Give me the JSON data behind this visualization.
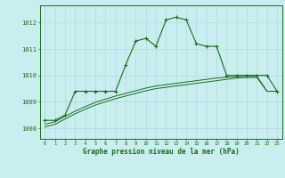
{
  "title": "Graphe pression niveau de la mer (hPa)",
  "background_color": "#c8eef0",
  "grid_color": "#b0d8dc",
  "line_color": "#1a6b1a",
  "x_ticks": [
    0,
    1,
    2,
    3,
    4,
    5,
    6,
    7,
    8,
    9,
    10,
    11,
    12,
    13,
    14,
    15,
    16,
    17,
    18,
    19,
    20,
    21,
    22,
    23
  ],
  "y_ticks": [
    1008,
    1009,
    1010,
    1011,
    1012
  ],
  "ylim": [
    1007.6,
    1012.65
  ],
  "xlim": [
    -0.5,
    23.5
  ],
  "series1": {
    "x": [
      0,
      1,
      2,
      3,
      4,
      5,
      6,
      7,
      8,
      9,
      10,
      11,
      12,
      13,
      14,
      15,
      16,
      17,
      18,
      19,
      20,
      21,
      22,
      23
    ],
    "y": [
      1008.3,
      1008.3,
      1008.5,
      1009.4,
      1009.4,
      1009.4,
      1009.4,
      1009.4,
      1010.4,
      1011.3,
      1011.4,
      1011.1,
      1012.1,
      1012.2,
      1012.1,
      1011.2,
      1011.1,
      1011.1,
      1010.0,
      1010.0,
      1010.0,
      1010.0,
      1010.0,
      1009.4
    ]
  },
  "series2": {
    "x": [
      0,
      1,
      2,
      3,
      4,
      5,
      6,
      7,
      8,
      9,
      10,
      11,
      12,
      13,
      14,
      15,
      16,
      17,
      18,
      19,
      20,
      21,
      22,
      23
    ],
    "y": [
      1008.05,
      1008.15,
      1008.35,
      1008.55,
      1008.72,
      1008.88,
      1009.0,
      1009.12,
      1009.22,
      1009.32,
      1009.42,
      1009.5,
      1009.55,
      1009.6,
      1009.65,
      1009.7,
      1009.75,
      1009.8,
      1009.85,
      1009.9,
      1009.92,
      1009.92,
      1009.4,
      1009.4
    ]
  },
  "series3": {
    "x": [
      0,
      1,
      2,
      3,
      4,
      5,
      6,
      7,
      8,
      9,
      10,
      11,
      12,
      13,
      14,
      15,
      16,
      17,
      18,
      19,
      20,
      21,
      22,
      23
    ],
    "y": [
      1008.15,
      1008.25,
      1008.45,
      1008.65,
      1008.82,
      1008.98,
      1009.1,
      1009.22,
      1009.32,
      1009.42,
      1009.52,
      1009.6,
      1009.65,
      1009.7,
      1009.75,
      1009.8,
      1009.85,
      1009.9,
      1009.93,
      1009.95,
      1009.97,
      1009.97,
      1009.4,
      1009.4
    ]
  }
}
